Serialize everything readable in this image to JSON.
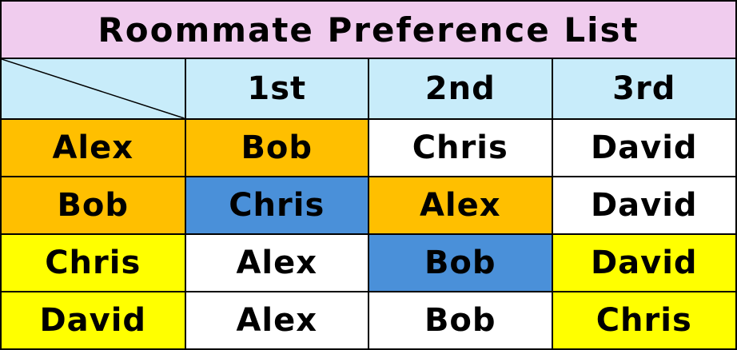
{
  "title": "Roommate Preference List",
  "columns": [
    "1st",
    "2nd",
    "3rd"
  ],
  "rows": [
    {
      "name": "Alex",
      "prefs": [
        "Bob",
        "Chris",
        "David"
      ]
    },
    {
      "name": "Bob",
      "prefs": [
        "Chris",
        "Alex",
        "David"
      ]
    },
    {
      "name": "Chris",
      "prefs": [
        "Alex",
        "Bob",
        "David"
      ]
    },
    {
      "name": "David",
      "prefs": [
        "Alex",
        "Bob",
        "Chris"
      ]
    }
  ],
  "colors": {
    "title_bg": "#f0ccee",
    "header_bg": "#c8ecfa",
    "orange": "#ffbf00",
    "blue": "#4a90d9",
    "yellow": "#ffff00",
    "white": "#ffffff"
  },
  "cell_colors": [
    [
      "orange",
      "orange",
      "white",
      "white"
    ],
    [
      "orange",
      "blue",
      "orange",
      "white"
    ],
    [
      "yellow",
      "white",
      "blue",
      "yellow"
    ],
    [
      "yellow",
      "white",
      "white",
      "yellow"
    ]
  ]
}
